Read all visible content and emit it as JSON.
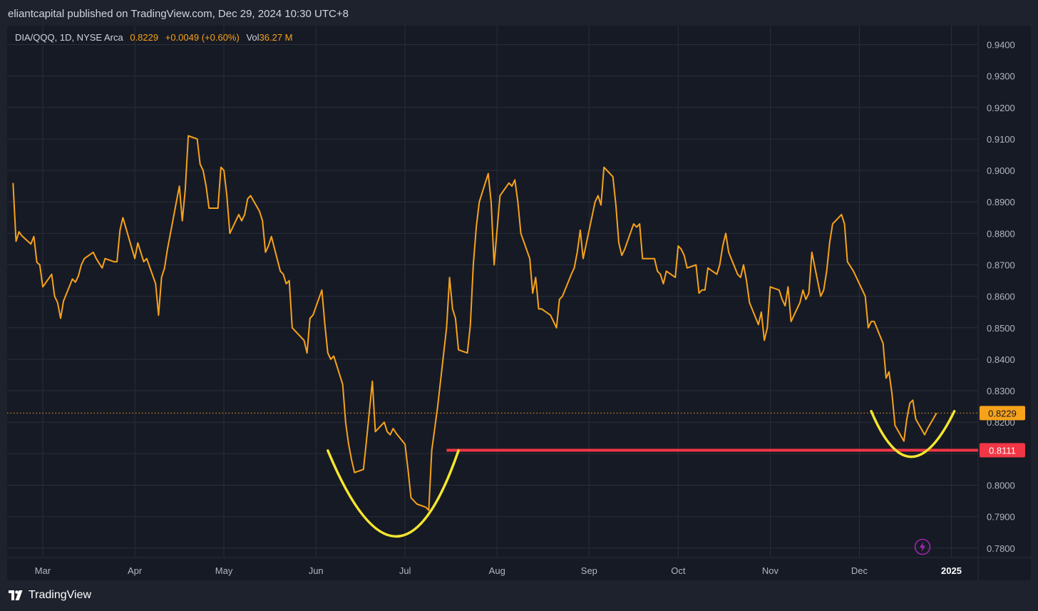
{
  "header": {
    "publication": "eliantcapital published on TradingView.com, Dec 29, 2024 10:30 UTC+8"
  },
  "legend": {
    "symbol": "DIA/QQQ, 1D, NYSE Arca",
    "price": "0.8229",
    "change": "+0.0049 (+0.60%)",
    "volume_label": "Vol",
    "volume_value": "36.27 M"
  },
  "footer": {
    "brand": "TradingView",
    "logo_icon": "tradingview-logo-icon"
  },
  "colors": {
    "background": "#1e222d",
    "plot_background": "#161a25",
    "grid": "#2a2e39",
    "line": "#f7a21b",
    "support": "#f23645",
    "cup_marker": "#f5e62e",
    "axis_text": "#b2b5be",
    "lightning": "#9c27b0"
  },
  "chart_data": {
    "type": "line",
    "title": "DIA/QQQ, 1D, NYSE Arca",
    "xlabel": "",
    "ylabel": "",
    "ylim": [
      0.777,
      0.946
    ],
    "x_ticks": [
      "Mar",
      "Apr",
      "May",
      "Jun",
      "Jul",
      "Aug",
      "Sep",
      "Oct",
      "Nov",
      "Dec",
      "2025"
    ],
    "y_ticks": [
      "0.9400",
      "0.9300",
      "0.9200",
      "0.9100",
      "0.9000",
      "0.8900",
      "0.8800",
      "0.8700",
      "0.8600",
      "0.8500",
      "0.8400",
      "0.8300",
      "0.8200",
      "0.8100",
      "0.8000",
      "0.7900",
      "0.7800"
    ],
    "grid": true,
    "last_price": 0.8229,
    "last_price_label": "0.8229",
    "support_level": 0.8111,
    "support_label": "0.8111",
    "support_start": "2024-07-15",
    "series": [
      {
        "name": "DIA/QQQ",
        "points": [
          [
            "2024-02-20",
            0.896
          ],
          [
            "2024-02-21",
            0.8775
          ],
          [
            "2024-02-22",
            0.8805
          ],
          [
            "2024-02-23",
            0.8792
          ],
          [
            "2024-02-26",
            0.8766
          ],
          [
            "2024-02-27",
            0.879
          ],
          [
            "2024-02-28",
            0.8708
          ],
          [
            "2024-02-29",
            0.87
          ],
          [
            "2024-03-01",
            0.863
          ],
          [
            "2024-03-04",
            0.867
          ],
          [
            "2024-03-05",
            0.86
          ],
          [
            "2024-03-06",
            0.858
          ],
          [
            "2024-03-07",
            0.853
          ],
          [
            "2024-03-08",
            0.8585
          ],
          [
            "2024-03-11",
            0.8655
          ],
          [
            "2024-03-12",
            0.8645
          ],
          [
            "2024-03-13",
            0.8665
          ],
          [
            "2024-03-14",
            0.87
          ],
          [
            "2024-03-15",
            0.872
          ],
          [
            "2024-03-18",
            0.874
          ],
          [
            "2024-03-19",
            0.872
          ],
          [
            "2024-03-20",
            0.8705
          ],
          [
            "2024-03-21",
            0.869
          ],
          [
            "2024-03-22",
            0.872
          ],
          [
            "2024-03-25",
            0.871
          ],
          [
            "2024-03-26",
            0.871
          ],
          [
            "2024-03-27",
            0.881
          ],
          [
            "2024-03-28",
            0.885
          ],
          [
            "2024-04-01",
            0.872
          ],
          [
            "2024-04-02",
            0.877
          ],
          [
            "2024-04-03",
            0.874
          ],
          [
            "2024-04-04",
            0.871
          ],
          [
            "2024-04-05",
            0.872
          ],
          [
            "2024-04-08",
            0.864
          ],
          [
            "2024-04-09",
            0.854
          ],
          [
            "2024-04-10",
            0.866
          ],
          [
            "2024-04-11",
            0.869
          ],
          [
            "2024-04-12",
            0.875
          ],
          [
            "2024-04-15",
            0.89
          ],
          [
            "2024-04-16",
            0.895
          ],
          [
            "2024-04-17",
            0.884
          ],
          [
            "2024-04-18",
            0.894
          ],
          [
            "2024-04-19",
            0.911
          ],
          [
            "2024-04-22",
            0.91
          ],
          [
            "2024-04-23",
            0.902
          ],
          [
            "2024-04-24",
            0.9
          ],
          [
            "2024-04-25",
            0.895
          ],
          [
            "2024-04-26",
            0.888
          ],
          [
            "2024-04-29",
            0.888
          ],
          [
            "2024-04-30",
            0.901
          ],
          [
            "2024-05-01",
            0.9
          ],
          [
            "2024-05-02",
            0.892
          ],
          [
            "2024-05-03",
            0.88
          ],
          [
            "2024-05-06",
            0.886
          ],
          [
            "2024-05-07",
            0.884
          ],
          [
            "2024-05-08",
            0.886
          ],
          [
            "2024-05-09",
            0.891
          ],
          [
            "2024-05-10",
            0.892
          ],
          [
            "2024-05-13",
            0.887
          ],
          [
            "2024-05-14",
            0.884
          ],
          [
            "2024-05-15",
            0.874
          ],
          [
            "2024-05-16",
            0.876
          ],
          [
            "2024-05-17",
            0.879
          ],
          [
            "2024-05-20",
            0.868
          ],
          [
            "2024-05-21",
            0.867
          ],
          [
            "2024-05-22",
            0.864
          ],
          [
            "2024-05-23",
            0.865
          ],
          [
            "2024-05-24",
            0.85
          ],
          [
            "2024-05-28",
            0.846
          ],
          [
            "2024-05-29",
            0.842
          ],
          [
            "2024-05-30",
            0.853
          ],
          [
            "2024-05-31",
            0.854
          ],
          [
            "2024-06-03",
            0.862
          ],
          [
            "2024-06-04",
            0.851
          ],
          [
            "2024-06-05",
            0.842
          ],
          [
            "2024-06-06",
            0.84
          ],
          [
            "2024-06-07",
            0.841
          ],
          [
            "2024-06-10",
            0.832
          ],
          [
            "2024-06-11",
            0.82
          ],
          [
            "2024-06-12",
            0.813
          ],
          [
            "2024-06-13",
            0.808
          ],
          [
            "2024-06-14",
            0.804
          ],
          [
            "2024-06-17",
            0.805
          ],
          [
            "2024-06-18",
            0.814
          ],
          [
            "2024-06-20",
            0.833
          ],
          [
            "2024-06-21",
            0.817
          ],
          [
            "2024-06-24",
            0.82
          ],
          [
            "2024-06-25",
            0.817
          ],
          [
            "2024-06-26",
            0.816
          ],
          [
            "2024-06-27",
            0.818
          ],
          [
            "2024-06-28",
            0.8165
          ],
          [
            "2024-07-01",
            0.813
          ],
          [
            "2024-07-02",
            0.805
          ],
          [
            "2024-07-03",
            0.796
          ],
          [
            "2024-07-05",
            0.794
          ],
          [
            "2024-07-08",
            0.793
          ],
          [
            "2024-07-09",
            0.792
          ],
          [
            "2024-07-10",
            0.811
          ],
          [
            "2024-07-11",
            0.818
          ],
          [
            "2024-07-12",
            0.825
          ],
          [
            "2024-07-15",
            0.85
          ],
          [
            "2024-07-16",
            0.866
          ],
          [
            "2024-07-17",
            0.856
          ],
          [
            "2024-07-18",
            0.853
          ],
          [
            "2024-07-19",
            0.843
          ],
          [
            "2024-07-22",
            0.842
          ],
          [
            "2024-07-23",
            0.851
          ],
          [
            "2024-07-24",
            0.87
          ],
          [
            "2024-07-25",
            0.882
          ],
          [
            "2024-07-26",
            0.89
          ],
          [
            "2024-07-29",
            0.899
          ],
          [
            "2024-07-30",
            0.89
          ],
          [
            "2024-07-31",
            0.87
          ],
          [
            "2024-08-01",
            0.881
          ],
          [
            "2024-08-02",
            0.892
          ],
          [
            "2024-08-05",
            0.896
          ],
          [
            "2024-08-06",
            0.895
          ],
          [
            "2024-08-07",
            0.897
          ],
          [
            "2024-08-08",
            0.89
          ],
          [
            "2024-08-09",
            0.88
          ],
          [
            "2024-08-12",
            0.872
          ],
          [
            "2024-08-13",
            0.861
          ],
          [
            "2024-08-14",
            0.866
          ],
          [
            "2024-08-15",
            0.856
          ],
          [
            "2024-08-16",
            0.856
          ],
          [
            "2024-08-19",
            0.854
          ],
          [
            "2024-08-20",
            0.852
          ],
          [
            "2024-08-21",
            0.85
          ],
          [
            "2024-08-22",
            0.859
          ],
          [
            "2024-08-23",
            0.86
          ],
          [
            "2024-08-26",
            0.867
          ],
          [
            "2024-08-27",
            0.869
          ],
          [
            "2024-08-28",
            0.874
          ],
          [
            "2024-08-29",
            0.881
          ],
          [
            "2024-08-30",
            0.872
          ],
          [
            "2024-09-03",
            0.89
          ],
          [
            "2024-09-04",
            0.892
          ],
          [
            "2024-09-05",
            0.889
          ],
          [
            "2024-09-06",
            0.901
          ],
          [
            "2024-09-09",
            0.898
          ],
          [
            "2024-09-10",
            0.889
          ],
          [
            "2024-09-11",
            0.877
          ],
          [
            "2024-09-12",
            0.873
          ],
          [
            "2024-09-13",
            0.875
          ],
          [
            "2024-09-16",
            0.883
          ],
          [
            "2024-09-17",
            0.882
          ],
          [
            "2024-09-18",
            0.883
          ],
          [
            "2024-09-19",
            0.872
          ],
          [
            "2024-09-20",
            0.872
          ],
          [
            "2024-09-23",
            0.872
          ],
          [
            "2024-09-24",
            0.868
          ],
          [
            "2024-09-25",
            0.867
          ],
          [
            "2024-09-26",
            0.864
          ],
          [
            "2024-09-27",
            0.868
          ],
          [
            "2024-09-30",
            0.866
          ],
          [
            "2024-10-01",
            0.876
          ],
          [
            "2024-10-02",
            0.875
          ],
          [
            "2024-10-03",
            0.873
          ],
          [
            "2024-10-04",
            0.869
          ],
          [
            "2024-10-07",
            0.87
          ],
          [
            "2024-10-08",
            0.861
          ],
          [
            "2024-10-09",
            0.862
          ],
          [
            "2024-10-10",
            0.862
          ],
          [
            "2024-10-11",
            0.869
          ],
          [
            "2024-10-14",
            0.867
          ],
          [
            "2024-10-15",
            0.87
          ],
          [
            "2024-10-16",
            0.876
          ],
          [
            "2024-10-17",
            0.88
          ],
          [
            "2024-10-18",
            0.874
          ],
          [
            "2024-10-21",
            0.867
          ],
          [
            "2024-10-22",
            0.866
          ],
          [
            "2024-10-23",
            0.87
          ],
          [
            "2024-10-24",
            0.865
          ],
          [
            "2024-10-25",
            0.858
          ],
          [
            "2024-10-28",
            0.851
          ],
          [
            "2024-10-29",
            0.855
          ],
          [
            "2024-10-30",
            0.846
          ],
          [
            "2024-10-31",
            0.85
          ],
          [
            "2024-11-01",
            0.863
          ],
          [
            "2024-11-04",
            0.862
          ],
          [
            "2024-11-05",
            0.859
          ],
          [
            "2024-11-06",
            0.857
          ],
          [
            "2024-11-07",
            0.863
          ],
          [
            "2024-11-08",
            0.852
          ],
          [
            "2024-11-11",
            0.858
          ],
          [
            "2024-11-12",
            0.862
          ],
          [
            "2024-11-13",
            0.859
          ],
          [
            "2024-11-14",
            0.861
          ],
          [
            "2024-11-15",
            0.874
          ],
          [
            "2024-11-18",
            0.86
          ],
          [
            "2024-11-19",
            0.862
          ],
          [
            "2024-11-20",
            0.868
          ],
          [
            "2024-11-21",
            0.877
          ],
          [
            "2024-11-22",
            0.883
          ],
          [
            "2024-11-25",
            0.886
          ],
          [
            "2024-11-26",
            0.883
          ],
          [
            "2024-11-27",
            0.871
          ],
          [
            "2024-11-29",
            0.868
          ],
          [
            "2024-12-02",
            0.862
          ],
          [
            "2024-12-03",
            0.86
          ],
          [
            "2024-12-04",
            0.85
          ],
          [
            "2024-12-05",
            0.852
          ],
          [
            "2024-12-06",
            0.852
          ],
          [
            "2024-12-09",
            0.845
          ],
          [
            "2024-12-10",
            0.834
          ],
          [
            "2024-12-11",
            0.836
          ],
          [
            "2024-12-12",
            0.829
          ],
          [
            "2024-12-13",
            0.819
          ],
          [
            "2024-12-16",
            0.814
          ],
          [
            "2024-12-17",
            0.821
          ],
          [
            "2024-12-18",
            0.826
          ],
          [
            "2024-12-19",
            0.827
          ],
          [
            "2024-12-20",
            0.821
          ],
          [
            "2024-12-23",
            0.816
          ],
          [
            "2024-12-24",
            0.818
          ],
          [
            "2024-12-27",
            0.8229
          ]
        ]
      }
    ],
    "annotations": [
      {
        "type": "cup-arc",
        "start": "2024-06-05",
        "bottom_date": "2024-06-29",
        "end": "2024-07-19",
        "edge_value": 0.811,
        "bottom_value": 0.7837
      },
      {
        "type": "cup-arc",
        "start": "2024-12-05",
        "bottom_date": "2024-12-18",
        "end": "2025-01-02",
        "edge_value": 0.8235,
        "bottom_value": 0.809
      }
    ]
  }
}
